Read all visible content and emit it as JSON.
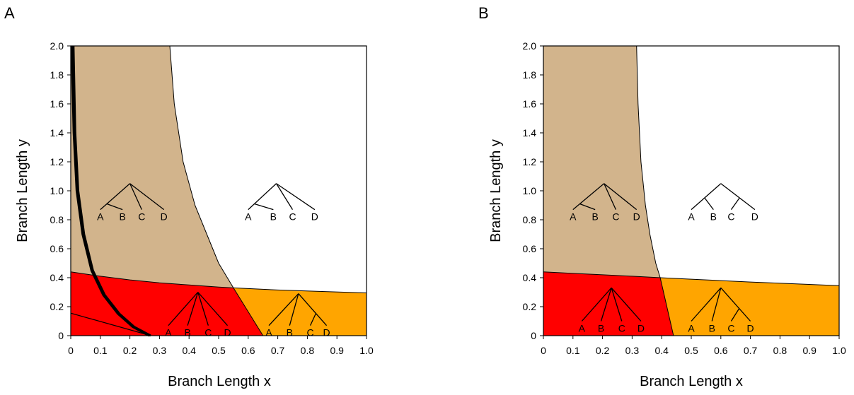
{
  "chart_data": [
    {
      "type": "area",
      "panel_label": "A",
      "xlabel": "Branch Length x",
      "ylabel": "Branch Length y",
      "xlim": [
        0,
        1.0
      ],
      "ylim": [
        0,
        2.0
      ],
      "xticks": [
        "0",
        "0.1",
        "0.2",
        "0.3",
        "0.4",
        "0.5",
        "0.6",
        "0.7",
        "0.8",
        "0.9",
        "1.0"
      ],
      "yticks": [
        "0",
        "0.2",
        "0.4",
        "0.6",
        "0.8",
        "1.0",
        "1.2",
        "1.4",
        "1.6",
        "1.8",
        "2.0"
      ],
      "grid": false,
      "region_colors": {
        "tan": "#D2B48C",
        "red": "#FF0000",
        "orange": "#FFA500",
        "white": "#FFFFFF"
      },
      "boundaries": {
        "tan_white": [
          [
            0.335,
            2.0
          ],
          [
            0.35,
            1.6
          ],
          [
            0.38,
            1.2
          ],
          [
            0.42,
            0.9
          ],
          [
            0.46,
            0.7
          ],
          [
            0.5,
            0.5
          ],
          [
            0.55,
            0.33
          ]
        ],
        "tan_red": [
          [
            0,
            0.44
          ],
          [
            0.1,
            0.41
          ],
          [
            0.2,
            0.385
          ],
          [
            0.3,
            0.365
          ],
          [
            0.4,
            0.35
          ],
          [
            0.5,
            0.335
          ],
          [
            0.55,
            0.33
          ]
        ],
        "white_orange": [
          [
            0.55,
            0.33
          ],
          [
            0.7,
            0.315
          ],
          [
            0.85,
            0.305
          ],
          [
            1.0,
            0.295
          ]
        ],
        "red_orange": [
          [
            0.55,
            0.33
          ],
          [
            0.65,
            0.0
          ]
        ]
      },
      "thick_curves": [
        [
          [
            0.003,
            2.0
          ],
          [
            0.01,
            1.4
          ],
          [
            0.02,
            1.0
          ],
          [
            0.04,
            0.7
          ],
          [
            0.07,
            0.45
          ],
          [
            0.11,
            0.28
          ],
          [
            0.16,
            0.15
          ],
          [
            0.21,
            0.06
          ],
          [
            0.265,
            0.0
          ]
        ],
        [
          [
            0.009,
            2.0
          ],
          [
            0.015,
            1.4
          ],
          [
            0.025,
            1.0
          ],
          [
            0.045,
            0.7
          ],
          [
            0.075,
            0.45
          ],
          [
            0.115,
            0.28
          ],
          [
            0.165,
            0.15
          ],
          [
            0.215,
            0.06
          ],
          [
            0.27,
            0.0
          ]
        ]
      ],
      "thin_line": [
        [
          0,
          0.155
        ],
        [
          0.27,
          0.0
        ]
      ],
      "trees": [
        {
          "topology": "caterpillar",
          "leaves": [
            "A",
            "B",
            "C",
            "D"
          ],
          "root": [
            0.2,
            1.05
          ],
          "base_y": 0.87,
          "leaf_x": [
            0.1,
            0.175,
            0.24,
            0.315
          ]
        },
        {
          "topology": "caterpillar",
          "leaves": [
            "A",
            "B",
            "C",
            "D"
          ],
          "root": [
            0.695,
            1.05
          ],
          "base_y": 0.87,
          "leaf_x": [
            0.6,
            0.685,
            0.75,
            0.825
          ]
        },
        {
          "topology": "star",
          "leaves": [
            "A",
            "B",
            "C",
            "D"
          ],
          "root": [
            0.43,
            0.3
          ],
          "base_y": 0.07,
          "leaf_x": [
            0.33,
            0.395,
            0.465,
            0.53
          ]
        },
        {
          "topology": "partial",
          "leaves": [
            "A",
            "B",
            "C",
            "D"
          ],
          "root": [
            0.77,
            0.29
          ],
          "base_y": 0.07,
          "leaf_x": [
            0.67,
            0.74,
            0.81,
            0.865
          ]
        }
      ]
    },
    {
      "type": "area",
      "panel_label": "B",
      "xlabel": "Branch Length x",
      "ylabel": "Branch Length y",
      "xlim": [
        0,
        1.0
      ],
      "ylim": [
        0,
        2.0
      ],
      "xticks": [
        "0",
        "0.1",
        "0.2",
        "0.3",
        "0.4",
        "0.5",
        "0.6",
        "0.7",
        "0.8",
        "0.9",
        "1.0"
      ],
      "yticks": [
        "0",
        "0.2",
        "0.4",
        "0.6",
        "0.8",
        "1.0",
        "1.2",
        "1.4",
        "1.6",
        "1.8",
        "2.0"
      ],
      "grid": false,
      "region_colors": {
        "tan": "#D2B48C",
        "red": "#FF0000",
        "orange": "#FFA500",
        "white": "#FFFFFF"
      },
      "boundaries": {
        "tan_white": [
          [
            0.315,
            2.0
          ],
          [
            0.32,
            1.6
          ],
          [
            0.33,
            1.2
          ],
          [
            0.345,
            0.9
          ],
          [
            0.36,
            0.7
          ],
          [
            0.38,
            0.5
          ],
          [
            0.395,
            0.4
          ]
        ],
        "tan_red": [
          [
            0,
            0.44
          ],
          [
            0.1,
            0.43
          ],
          [
            0.2,
            0.42
          ],
          [
            0.3,
            0.41
          ],
          [
            0.395,
            0.4
          ]
        ],
        "white_orange": [
          [
            0.395,
            0.4
          ],
          [
            0.5,
            0.39
          ],
          [
            0.7,
            0.37
          ],
          [
            1.0,
            0.345
          ]
        ],
        "red_orange": [
          [
            0.395,
            0.4
          ],
          [
            0.44,
            0.0
          ]
        ]
      },
      "thick_curves": [],
      "thin_line": [],
      "trees": [
        {
          "topology": "caterpillar",
          "leaves": [
            "A",
            "B",
            "C",
            "D"
          ],
          "root": [
            0.205,
            1.05
          ],
          "base_y": 0.87,
          "leaf_x": [
            0.1,
            0.175,
            0.245,
            0.315
          ]
        },
        {
          "topology": "balanced",
          "leaves": [
            "A",
            "B",
            "C",
            "D"
          ],
          "root": [
            0.6,
            1.05
          ],
          "base_y": 0.87,
          "leaf_x": [
            0.5,
            0.575,
            0.635,
            0.715
          ]
        },
        {
          "topology": "star",
          "leaves": [
            "A",
            "B",
            "C",
            "D"
          ],
          "root": [
            0.23,
            0.33
          ],
          "base_y": 0.1,
          "leaf_x": [
            0.13,
            0.195,
            0.265,
            0.33
          ]
        },
        {
          "topology": "partial",
          "leaves": [
            "A",
            "B",
            "C",
            "D"
          ],
          "root": [
            0.6,
            0.33
          ],
          "base_y": 0.1,
          "leaf_x": [
            0.5,
            0.57,
            0.635,
            0.7
          ]
        }
      ]
    }
  ]
}
